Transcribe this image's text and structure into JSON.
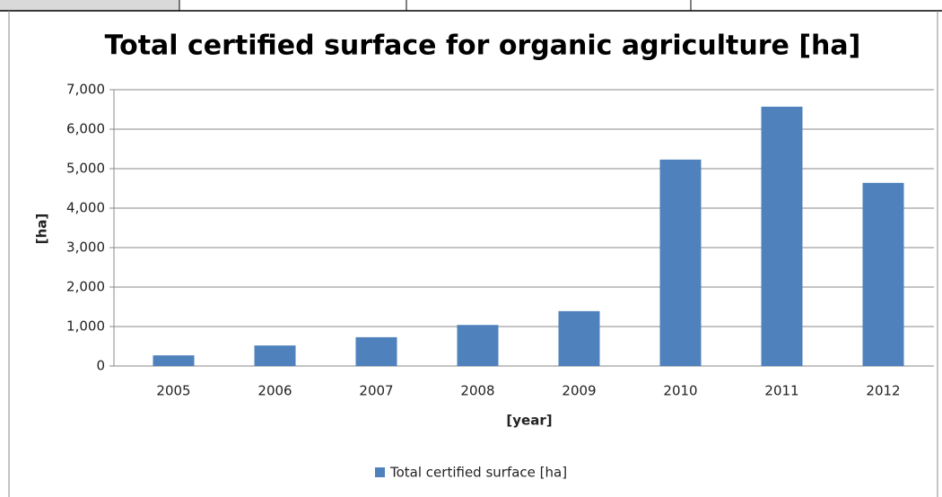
{
  "chart_data": {
    "type": "bar",
    "title": "Total certified surface for organic agriculture [ha]",
    "x_label": "[year]",
    "y_label": "[ha]",
    "categories": [
      "2005",
      "2006",
      "2007",
      "2008",
      "2009",
      "2010",
      "2011",
      "2012"
    ],
    "series": [
      {
        "name": "Total certified surface [ha]",
        "color": "#4f81bd",
        "values": [
          270,
          520,
          730,
          1040,
          1390,
          5230,
          6570,
          4640
        ]
      }
    ],
    "ylim": [
      0,
      7000
    ],
    "yticks": [
      0,
      {
        "value": 1000,
        "label": "1,000"
      },
      {
        "value": 2000,
        "label": "2,000"
      },
      {
        "value": 3000,
        "label": "3,000"
      },
      {
        "value": 4000,
        "label": "4,000"
      },
      {
        "value": 5000,
        "label": "5,000"
      },
      {
        "value": 6000,
        "label": "6,000"
      },
      {
        "value": 7000,
        "label": "7,000"
      }
    ],
    "grid": true,
    "legend": "bottom"
  }
}
